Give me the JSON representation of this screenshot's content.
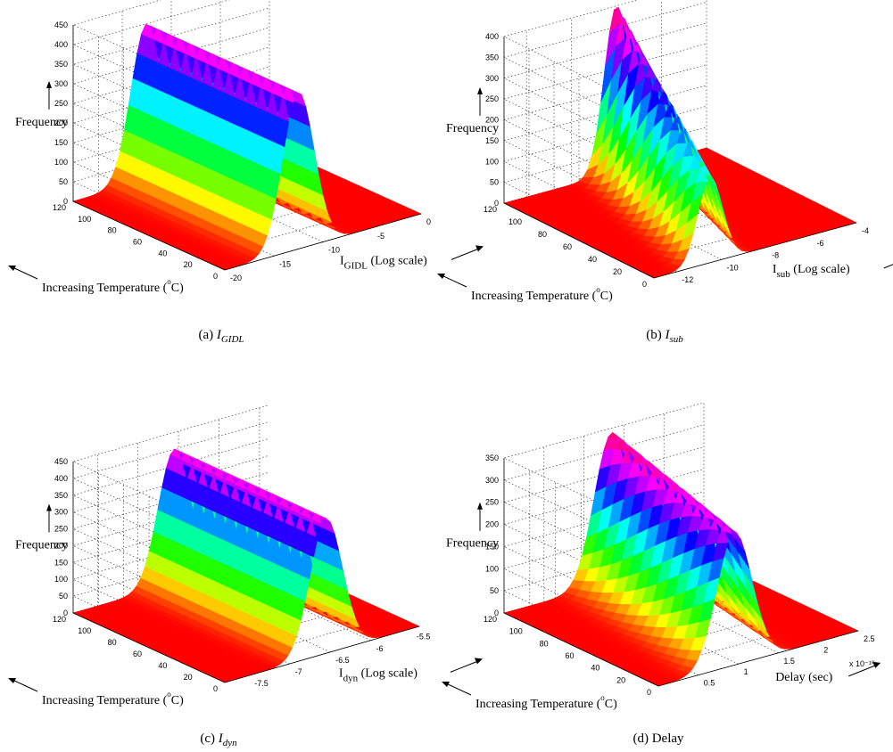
{
  "figure": {
    "panels": [
      {
        "id": "a",
        "caption_prefix": "(a) ",
        "caption_main": "I",
        "caption_sub": "GIDL",
        "zlabel": "Frequency",
        "temp_label": "Increasing Temperature (",
        "temp_unit": "C)",
        "degree_mark": "o",
        "xlabel_main": "I",
        "xlabel_sub": "GIDL",
        "xlabel_tail": " (Log scale)",
        "multiplier": ""
      },
      {
        "id": "b",
        "caption_prefix": "(b) ",
        "caption_main": "I",
        "caption_sub": "sub",
        "zlabel": "Frequency",
        "temp_label": "Increasing Temperature (",
        "temp_unit": "C)",
        "degree_mark": "o",
        "xlabel_main": "I",
        "xlabel_sub": "sub",
        "xlabel_tail": " (Log scale)",
        "multiplier": ""
      },
      {
        "id": "c",
        "caption_prefix": "(c) ",
        "caption_main": "I",
        "caption_sub": "dyn",
        "zlabel": "Frequency",
        "temp_label": "Increasing Temperature (",
        "temp_unit": "C)",
        "degree_mark": "o",
        "xlabel_main": "I",
        "xlabel_sub": "dyn",
        "xlabel_tail": " (Log scale)",
        "multiplier": ""
      },
      {
        "id": "d",
        "caption_prefix": "(d) Delay",
        "caption_main": "",
        "caption_sub": "",
        "zlabel": "Frequency",
        "temp_label": "Increasing Temperature (",
        "temp_unit": "C)",
        "degree_mark": "o",
        "xlabel_main": "Delay (sec)",
        "xlabel_sub": "",
        "xlabel_tail": "",
        "multiplier": "x 10⁻¹⁰"
      }
    ]
  },
  "chart_data": [
    {
      "type": "surface",
      "title": "(a) I_GIDL",
      "x_axis": "I_GIDL (Log scale)",
      "y_axis": "Increasing Temperature (°C)",
      "z_axis": "Frequency",
      "x_ticks": [
        "-20",
        "-15",
        "-10",
        "-5",
        "0"
      ],
      "y_ticks": [
        "0",
        "20",
        "40",
        "60",
        "80",
        "100",
        "120"
      ],
      "z_ticks": [
        "0",
        "50",
        "100",
        "150",
        "200",
        "250",
        "300",
        "350",
        "400",
        "450"
      ],
      "xlim": [
        -20,
        0
      ],
      "ylim": [
        0,
        120
      ],
      "zlim": [
        0,
        450
      ],
      "ridge": {
        "center_at_T0": -12.5,
        "center_at_T120": -12.5,
        "sigma": 1.6,
        "peak_at_T0": 400,
        "peak_at_T120": 400
      },
      "grid": true
    },
    {
      "type": "surface",
      "title": "(b) I_sub",
      "x_axis": "I_sub (Log scale)",
      "y_axis": "Increasing Temperature (°C)",
      "z_axis": "Frequency",
      "x_ticks": [
        "-12",
        "-10",
        "-8",
        "-6",
        "-4"
      ],
      "y_ticks": [
        "0",
        "20",
        "40",
        "60",
        "80",
        "100",
        "120"
      ],
      "z_ticks": [
        "0",
        "50",
        "100",
        "150",
        "200",
        "250",
        "300",
        "350",
        "400"
      ],
      "xlim": [
        -13,
        -4
      ],
      "ylim": [
        0,
        120
      ],
      "zlim": [
        0,
        400
      ],
      "ridge": {
        "center_at_T0": -10.5,
        "center_at_T120": -8.0,
        "sigma": 0.55,
        "peak_at_T0": 205,
        "peak_at_T120": 400
      },
      "grid": true
    },
    {
      "type": "surface",
      "title": "(c) I_dyn",
      "x_axis": "I_dyn (Log scale)",
      "y_axis": "Increasing Temperature (°C)",
      "z_axis": "Frequency",
      "x_ticks": [
        "-7.5",
        "-7",
        "-6.5",
        "-6",
        "-5.5"
      ],
      "y_ticks": [
        "0",
        "20",
        "40",
        "60",
        "80",
        "100",
        "120"
      ],
      "z_ticks": [
        "0",
        "50",
        "100",
        "150",
        "200",
        "250",
        "300",
        "350",
        "400",
        "450"
      ],
      "xlim": [
        -7.8,
        -5.4
      ],
      "ylim": [
        0,
        120
      ],
      "zlim": [
        0,
        450
      ],
      "ridge": {
        "center_at_T0": -6.55,
        "center_at_T120": -6.55,
        "sigma": 0.2,
        "peak_at_T0": 400,
        "peak_at_T120": 400
      },
      "grid": true
    },
    {
      "type": "surface",
      "title": "(d) Delay",
      "x_axis": "Delay (sec)",
      "x_multiplier": "x 10^-10",
      "y_axis": "Increasing Temperature (°C)",
      "z_axis": "Frequency",
      "x_ticks": [
        "0.5",
        "1",
        "1.5",
        "2",
        "2.5"
      ],
      "y_ticks": [
        "0",
        "20",
        "40",
        "60",
        "80",
        "100",
        "120"
      ],
      "z_ticks": [
        "0",
        "50",
        "100",
        "150",
        "200",
        "250",
        "300",
        "350"
      ],
      "xlim": [
        0,
        2.5
      ],
      "ylim": [
        0,
        120
      ],
      "zlim": [
        0,
        350
      ],
      "ridge": {
        "center_at_T0": 0.95,
        "center_at_T120": 1.35,
        "sigma": 0.22,
        "peak_at_T0": 300,
        "peak_at_T120": 340
      },
      "grid": true
    }
  ]
}
